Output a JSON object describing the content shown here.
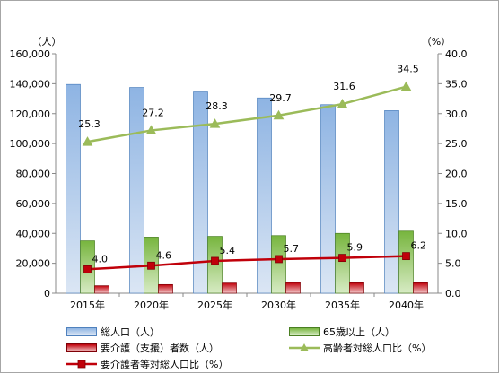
{
  "chart_data": {
    "type": "bar+line",
    "categories": [
      "2015年",
      "2020年",
      "2025年",
      "2030年",
      "2035年",
      "2040年"
    ],
    "y_left": {
      "unit_label": "（人）",
      "ylim": [
        0,
        160000
      ],
      "ticks": [
        "0",
        "20,000",
        "40,000",
        "60,000",
        "80,000",
        "100,000",
        "120,000",
        "140,000",
        "160,000"
      ]
    },
    "y_right": {
      "unit_label": "（%）",
      "ylim": [
        0,
        40
      ],
      "ticks": [
        "0.0",
        "5.0",
        "10.0",
        "15.0",
        "20.0",
        "25.0",
        "30.0",
        "35.0",
        "40.0"
      ]
    },
    "bar_series": [
      {
        "name": "総人口（人）",
        "axis": "left",
        "color_top": "#8eb4e3",
        "color_bottom": "#dbe6f4",
        "values": [
          139500,
          137500,
          134500,
          130500,
          126000,
          122000
        ]
      },
      {
        "name": "65歳以上（人）",
        "axis": "left",
        "color_top": "#77b53e",
        "color_bottom": "#d7ebc4",
        "values": [
          35000,
          37500,
          38000,
          38500,
          40000,
          41500
        ]
      },
      {
        "name": "要介護（支援）者数（人）",
        "axis": "left",
        "color_top": "#c0000a",
        "color_bottom": "#f2c6c8",
        "values": [
          5000,
          5800,
          6800,
          7100,
          7000,
          7000
        ]
      }
    ],
    "line_series": [
      {
        "name": "高齢者対総人口比（%）",
        "axis": "right",
        "color": "#9bbb59",
        "marker": "triangle",
        "values": [
          25.3,
          27.2,
          28.3,
          29.7,
          31.6,
          34.5
        ],
        "labels": [
          "25.3",
          "27.2",
          "28.3",
          "29.7",
          "31.6",
          "34.5"
        ]
      },
      {
        "name": "要介護者等対総人口比（%）",
        "axis": "right",
        "color": "#c0000a",
        "marker": "square",
        "values": [
          4.0,
          4.6,
          5.4,
          5.7,
          5.9,
          6.2
        ],
        "labels": [
          "4.0",
          "4.6",
          "5.4",
          "5.7",
          "5.9",
          "6.2"
        ]
      }
    ],
    "grid": false,
    "legend_position": "bottom"
  },
  "legend": {
    "total_population": "総人口（人）",
    "over65": "65歳以上（人）",
    "care_need": "要介護（支援）者数（人）",
    "elderly_ratio": "高齢者対総人口比（%）",
    "care_ratio": "要介護者等対総人口比（%）"
  }
}
